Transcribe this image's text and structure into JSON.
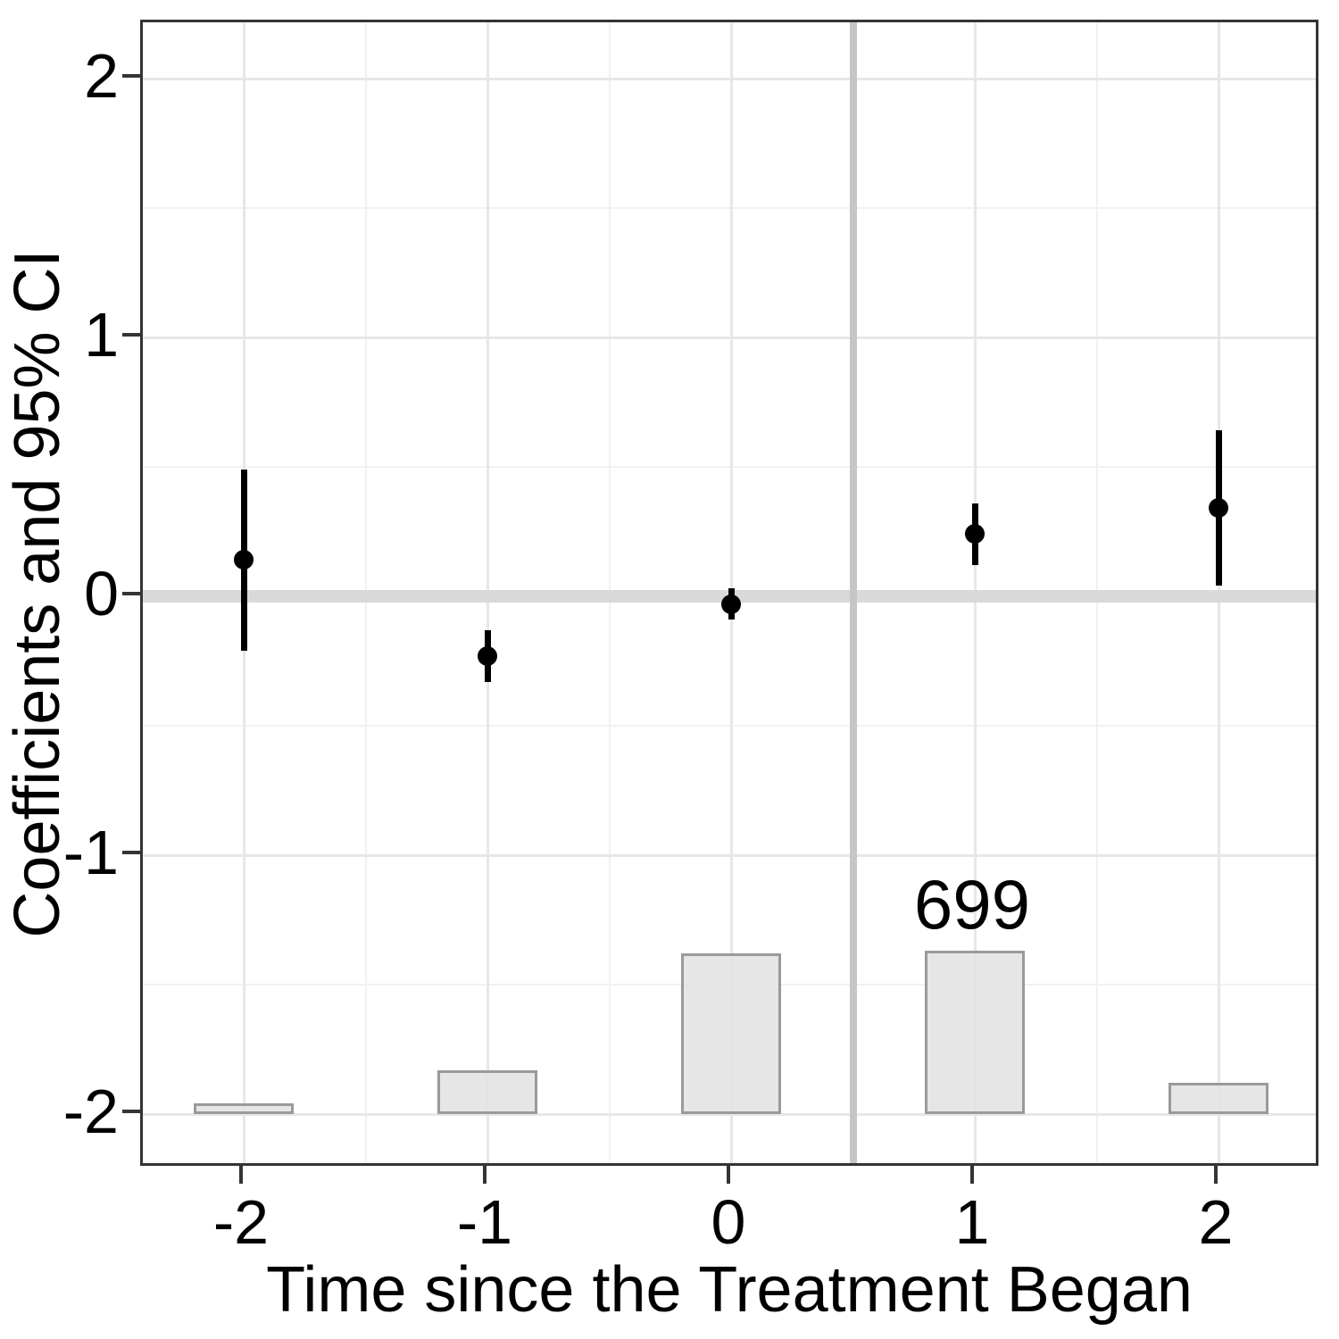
{
  "chart_data": {
    "type": "scatter",
    "subtype": "event-study coefficient plot with 95% CI error bars and observation-count histogram",
    "title": "",
    "xlabel": "Time since the Treatment Began",
    "ylabel": "Coefficients and 95% CI",
    "x_ticks": [
      -2,
      -1,
      0,
      1,
      2
    ],
    "x_tick_labels": [
      "-2",
      "-1",
      "0",
      "1",
      "2"
    ],
    "y_ticks": [
      2,
      1,
      0,
      -1,
      -2
    ],
    "y_tick_labels": [
      "2",
      "1",
      "0",
      "-1",
      "-2"
    ],
    "xlim": [
      -2.42,
      2.42
    ],
    "ylim": [
      -2.22,
      2.21
    ],
    "grid": "major and minor light-gray gridlines on white background, dark panel border",
    "legend": "none",
    "points": [
      {
        "x": -2,
        "coef": 0.14,
        "ci_low": -0.21,
        "ci_high": 0.49
      },
      {
        "x": -1,
        "coef": -0.23,
        "ci_low": -0.33,
        "ci_high": -0.13
      },
      {
        "x": 0,
        "coef": -0.03,
        "ci_low": -0.09,
        "ci_high": 0.03
      },
      {
        "x": 1,
        "coef": 0.24,
        "ci_low": 0.12,
        "ci_high": 0.36
      },
      {
        "x": 2,
        "coef": 0.34,
        "ci_low": 0.04,
        "ci_high": 0.64
      }
    ],
    "reference_lines": {
      "horizontal_y": 0,
      "vertical_x": 0.5
    },
    "histogram": {
      "baseline_y": -2,
      "bar_width_axis_units": 0.41,
      "bars": [
        {
          "x": -2,
          "height_units": 0.04,
          "count_estimated": 42,
          "label": ""
        },
        {
          "x": -1,
          "height_units": 0.17,
          "count_estimated": 186,
          "label": ""
        },
        {
          "x": 0,
          "height_units": 0.62,
          "count_estimated": 684,
          "label": ""
        },
        {
          "x": 1,
          "height_units": 0.63,
          "count_estimated": 699,
          "label": "699"
        },
        {
          "x": 2,
          "height_units": 0.12,
          "count_estimated": 133,
          "label": ""
        }
      ]
    },
    "colors": {
      "point": "#000000",
      "error_bar": "#000000",
      "bar_fill": "#e3e3e3",
      "bar_border": "#9a9a9a",
      "zero_line": "#d9d9d9",
      "treatment_line": "#c6c6c6",
      "grid_major": "#e7e7e7",
      "grid_minor": "#f1f1f1",
      "panel_border": "#343434",
      "tick_mark": "#343434",
      "text": "#000000"
    }
  }
}
